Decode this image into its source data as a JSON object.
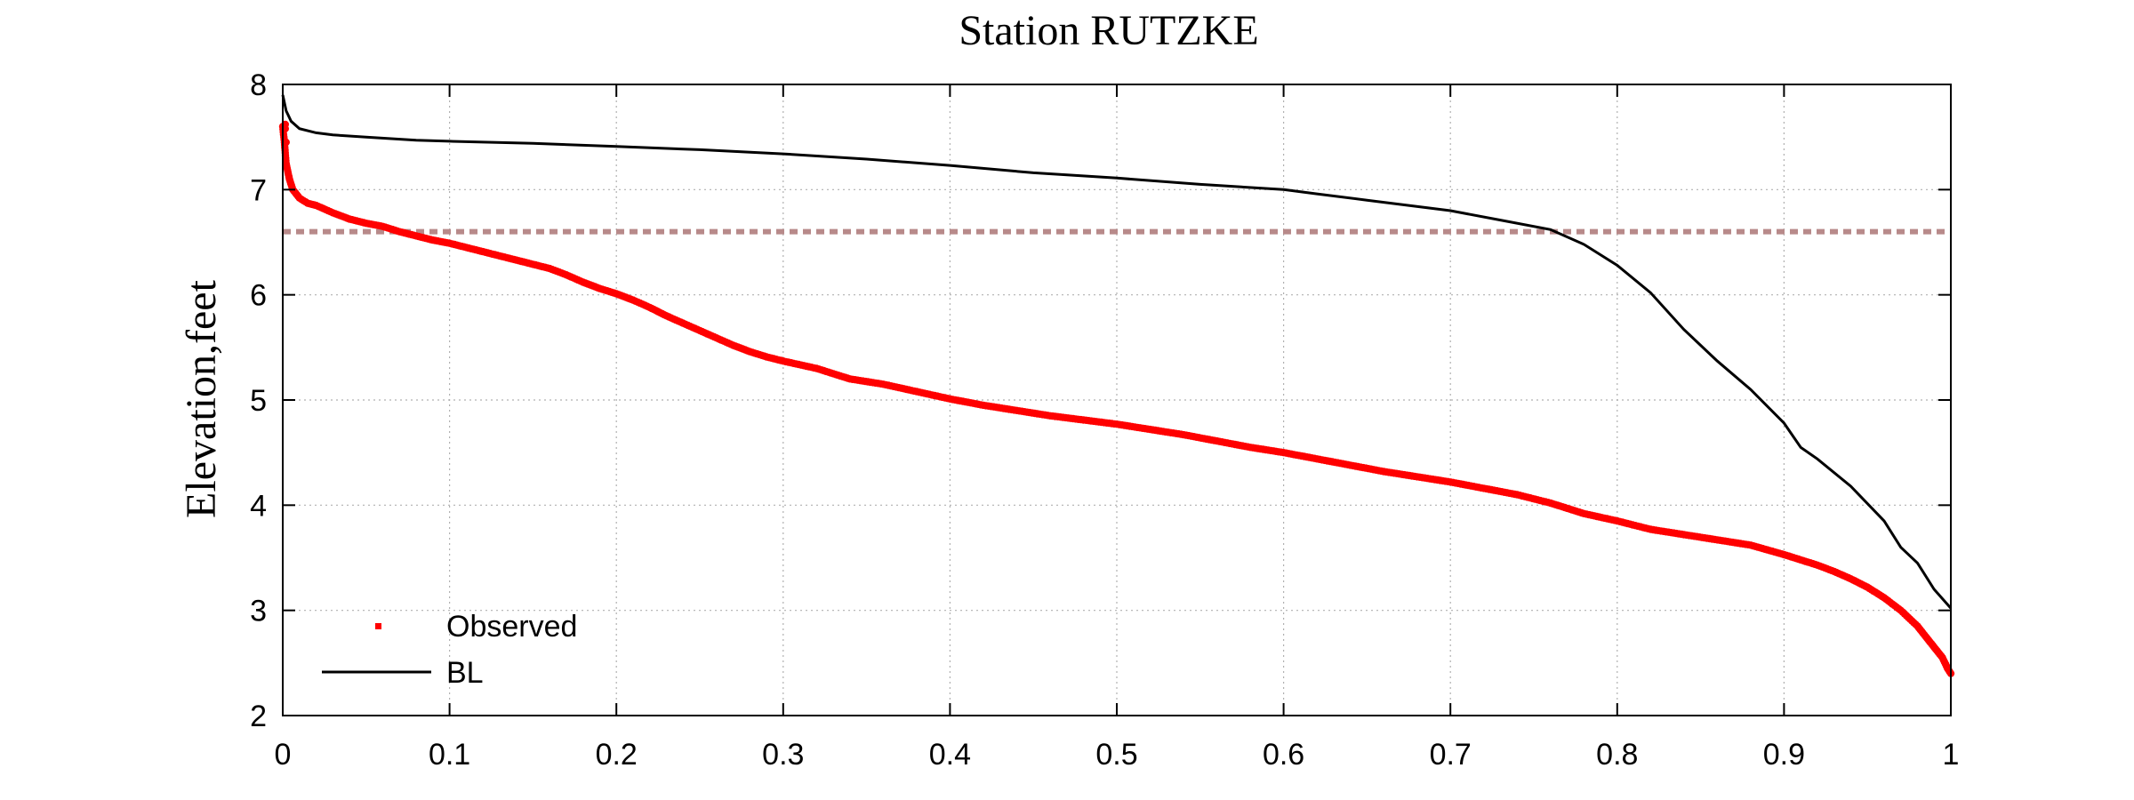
{
  "chart_data": {
    "type": "line",
    "title": "Station RUTZKE",
    "xlabel": "",
    "ylabel": "Elevation,feet",
    "xlim": [
      0,
      1
    ],
    "ylim": [
      2,
      8
    ],
    "x_ticks": [
      0,
      0.1,
      0.2,
      0.3,
      0.4,
      0.5,
      0.6,
      0.7,
      0.8,
      0.9,
      1
    ],
    "x_tick_labels": [
      "0",
      "0.1",
      "0.2",
      "0.3",
      "0.4",
      "0.5",
      "0.6",
      "0.7",
      "0.8",
      "0.9",
      "1"
    ],
    "y_ticks": [
      2,
      3,
      4,
      5,
      6,
      7,
      8
    ],
    "y_tick_labels": [
      "2",
      "3",
      "4",
      "5",
      "6",
      "7",
      "8"
    ],
    "grid": true,
    "legend_position": "bottom-left",
    "reference_line": {
      "y": 6.6,
      "color": "#b88a8a",
      "style": "dashed"
    },
    "series": [
      {
        "name": "Observed",
        "style": "markers",
        "color": "#ff0000",
        "x": [
          0,
          0.001,
          0.002,
          0.004,
          0.006,
          0.01,
          0.015,
          0.02,
          0.03,
          0.04,
          0.05,
          0.06,
          0.07,
          0.08,
          0.09,
          0.1,
          0.11,
          0.12,
          0.13,
          0.14,
          0.15,
          0.16,
          0.17,
          0.18,
          0.19,
          0.2,
          0.21,
          0.22,
          0.23,
          0.24,
          0.25,
          0.26,
          0.27,
          0.28,
          0.29,
          0.3,
          0.32,
          0.34,
          0.36,
          0.38,
          0.4,
          0.42,
          0.44,
          0.46,
          0.48,
          0.5,
          0.52,
          0.54,
          0.56,
          0.58,
          0.6,
          0.62,
          0.64,
          0.66,
          0.68,
          0.7,
          0.72,
          0.74,
          0.76,
          0.78,
          0.8,
          0.82,
          0.84,
          0.86,
          0.88,
          0.9,
          0.91,
          0.92,
          0.93,
          0.94,
          0.95,
          0.96,
          0.97,
          0.98,
          0.985,
          0.99,
          0.995,
          0.998,
          1.0
        ],
        "y": [
          7.6,
          7.45,
          7.25,
          7.1,
          7.0,
          6.92,
          6.87,
          6.85,
          6.78,
          6.72,
          6.68,
          6.65,
          6.6,
          6.56,
          6.52,
          6.49,
          6.45,
          6.41,
          6.37,
          6.33,
          6.29,
          6.25,
          6.19,
          6.12,
          6.06,
          6.01,
          5.95,
          5.88,
          5.8,
          5.73,
          5.66,
          5.59,
          5.52,
          5.46,
          5.41,
          5.37,
          5.3,
          5.2,
          5.15,
          5.08,
          5.01,
          4.95,
          4.9,
          4.85,
          4.81,
          4.77,
          4.72,
          4.67,
          4.61,
          4.55,
          4.5,
          4.44,
          4.38,
          4.32,
          4.27,
          4.22,
          4.16,
          4.1,
          4.02,
          3.92,
          3.85,
          3.77,
          3.72,
          3.67,
          3.62,
          3.53,
          3.48,
          3.43,
          3.37,
          3.3,
          3.22,
          3.12,
          3.0,
          2.85,
          2.75,
          2.65,
          2.55,
          2.45,
          2.4
        ]
      },
      {
        "name": "BL",
        "style": "line",
        "color": "#000000",
        "x": [
          0,
          0.002,
          0.005,
          0.01,
          0.02,
          0.03,
          0.05,
          0.08,
          0.1,
          0.15,
          0.2,
          0.25,
          0.3,
          0.35,
          0.4,
          0.45,
          0.5,
          0.55,
          0.6,
          0.62,
          0.65,
          0.7,
          0.73,
          0.76,
          0.78,
          0.8,
          0.82,
          0.84,
          0.86,
          0.88,
          0.9,
          0.91,
          0.92,
          0.94,
          0.96,
          0.97,
          0.98,
          0.99,
          1.0
        ],
        "y": [
          7.9,
          7.75,
          7.65,
          7.58,
          7.54,
          7.52,
          7.5,
          7.47,
          7.46,
          7.44,
          7.41,
          7.38,
          7.34,
          7.29,
          7.23,
          7.16,
          7.11,
          7.05,
          7.0,
          6.96,
          6.9,
          6.8,
          6.71,
          6.62,
          6.48,
          6.28,
          6.02,
          5.67,
          5.37,
          5.1,
          4.78,
          4.55,
          4.44,
          4.18,
          3.85,
          3.6,
          3.45,
          3.2,
          3.02
        ]
      }
    ]
  }
}
